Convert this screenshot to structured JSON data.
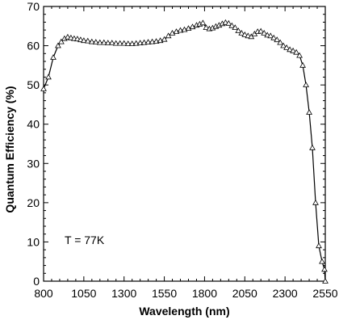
{
  "chart_data": {
    "type": "line",
    "xlabel": "Wavelength (nm)",
    "ylabel": "Quantum Efficiency (%)",
    "xlim": [
      800,
      2550
    ],
    "ylim": [
      0,
      70
    ],
    "x_ticks": [
      800,
      1050,
      1300,
      1550,
      1800,
      2050,
      2300,
      2550
    ],
    "x_tick_labels": [
      "800",
      "1050",
      "1300",
      "1550",
      "1800",
      "2050",
      "2300",
      "2550"
    ],
    "y_ticks": [
      0,
      10,
      20,
      30,
      40,
      50,
      60,
      70
    ],
    "y_tick_labels": [
      "0",
      "10",
      "20",
      "30",
      "40",
      "50",
      "60",
      "70"
    ],
    "grid": false,
    "marker": "open-triangle",
    "annotation": "T = 77K",
    "series": [
      {
        "x": [
          800,
          830,
          860,
          890,
          910,
          930,
          950,
          970,
          990,
          1010,
          1030,
          1050,
          1075,
          1100,
          1125,
          1150,
          1175,
          1200,
          1225,
          1250,
          1275,
          1300,
          1325,
          1350,
          1375,
          1400,
          1425,
          1450,
          1475,
          1500,
          1525,
          1550,
          1575,
          1600,
          1625,
          1650,
          1675,
          1700,
          1725,
          1750,
          1770,
          1790,
          1810,
          1830,
          1850,
          1870,
          1890,
          1910,
          1930,
          1950,
          1970,
          1990,
          2010,
          2030,
          2050,
          2070,
          2090,
          2110,
          2130,
          2150,
          2170,
          2190,
          2210,
          2230,
          2250,
          2270,
          2290,
          2310,
          2330,
          2350,
          2370,
          2390,
          2410,
          2430,
          2450,
          2470,
          2490,
          2510,
          2530,
          2545,
          2550
        ],
        "y": [
          49,
          52,
          57,
          60,
          61,
          61.8,
          62.2,
          62.0,
          61.8,
          61.7,
          61.5,
          61.3,
          61.2,
          61.0,
          60.9,
          60.8,
          60.8,
          60.7,
          60.7,
          60.6,
          60.6,
          60.6,
          60.5,
          60.5,
          60.6,
          60.7,
          60.8,
          60.9,
          61.0,
          61.1,
          61.3,
          61.6,
          62.5,
          63.2,
          63.6,
          63.9,
          64.1,
          64.4,
          64.8,
          65.2,
          65.5,
          65.8,
          64.6,
          64.3,
          64.5,
          64.9,
          65.2,
          65.6,
          65.9,
          65.7,
          65.1,
          64.6,
          63.8,
          63.2,
          62.8,
          62.5,
          62.3,
          63.0,
          63.6,
          63.7,
          63.2,
          62.7,
          62.5,
          62.0,
          61.5,
          60.8,
          60.0,
          59.5,
          59.0,
          58.7,
          58.3,
          57.5,
          55.0,
          50.0,
          43.0,
          34.0,
          20.0,
          9.0,
          5.0,
          3.0,
          0
        ]
      }
    ]
  }
}
